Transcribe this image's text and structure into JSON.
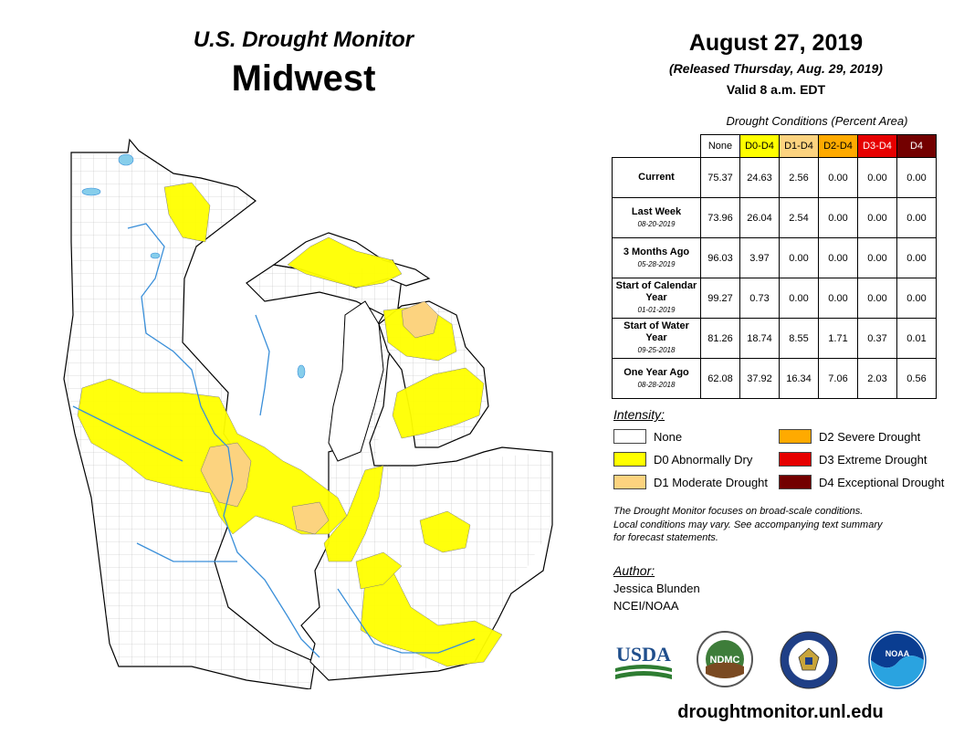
{
  "header": {
    "title": "U.S. Drought Monitor",
    "region": "Midwest",
    "date": "August 27, 2019",
    "released": "(Released Thursday, Aug. 29, 2019)",
    "valid": "Valid 8 a.m. EDT"
  },
  "table": {
    "caption": "Drought Conditions (Percent Area)",
    "columns": [
      {
        "label": "None",
        "color": "#ffffff",
        "text": "#000000"
      },
      {
        "label": "D0-D4",
        "color": "#ffff00",
        "text": "#000000"
      },
      {
        "label": "D1-D4",
        "color": "#fcd37f",
        "text": "#000000"
      },
      {
        "label": "D2-D4",
        "color": "#ffaa00",
        "text": "#000000"
      },
      {
        "label": "D3-D4",
        "color": "#e60000",
        "text": "#ffffff"
      },
      {
        "label": "D4",
        "color": "#730000",
        "text": "#ffffff"
      }
    ],
    "rows": [
      {
        "label": "Current",
        "sub": "",
        "values": [
          "75.37",
          "24.63",
          "2.56",
          "0.00",
          "0.00",
          "0.00"
        ]
      },
      {
        "label": "Last Week",
        "sub": "08-20-2019",
        "values": [
          "73.96",
          "26.04",
          "2.54",
          "0.00",
          "0.00",
          "0.00"
        ]
      },
      {
        "label": "3 Months Ago",
        "sub": "05-28-2019",
        "values": [
          "96.03",
          "3.97",
          "0.00",
          "0.00",
          "0.00",
          "0.00"
        ]
      },
      {
        "label": "Start of Calendar Year",
        "sub": "01-01-2019",
        "values": [
          "99.27",
          "0.73",
          "0.00",
          "0.00",
          "0.00",
          "0.00"
        ]
      },
      {
        "label": "Start of Water Year",
        "sub": "09-25-2018",
        "values": [
          "81.26",
          "18.74",
          "8.55",
          "1.71",
          "0.37",
          "0.01"
        ]
      },
      {
        "label": "One Year Ago",
        "sub": "08-28-2018",
        "values": [
          "62.08",
          "37.92",
          "16.34",
          "7.06",
          "2.03",
          "0.56"
        ]
      }
    ]
  },
  "legend": {
    "title": "Intensity:",
    "items": [
      {
        "label": "None",
        "color": "#ffffff"
      },
      {
        "label": "D0 Abnormally Dry",
        "color": "#ffff00"
      },
      {
        "label": "D1 Moderate Drought",
        "color": "#fcd37f"
      },
      {
        "label": "D2 Severe Drought",
        "color": "#ffaa00"
      },
      {
        "label": "D3 Extreme Drought",
        "color": "#e60000"
      },
      {
        "label": "D4 Exceptional Drought",
        "color": "#730000"
      }
    ]
  },
  "note": {
    "line1": "The Drought Monitor focuses on broad-scale conditions.",
    "line2": "Local conditions may vary. See accompanying text summary",
    "line3": "for forecast statements."
  },
  "author": {
    "heading": "Author:",
    "name": "Jessica Blunden",
    "org": "NCEI/NOAA"
  },
  "logos": {
    "usda": "USDA",
    "ndmc": "NDMC",
    "noaa": "NOAA"
  },
  "url": "droughtmonitor.unl.edu"
}
